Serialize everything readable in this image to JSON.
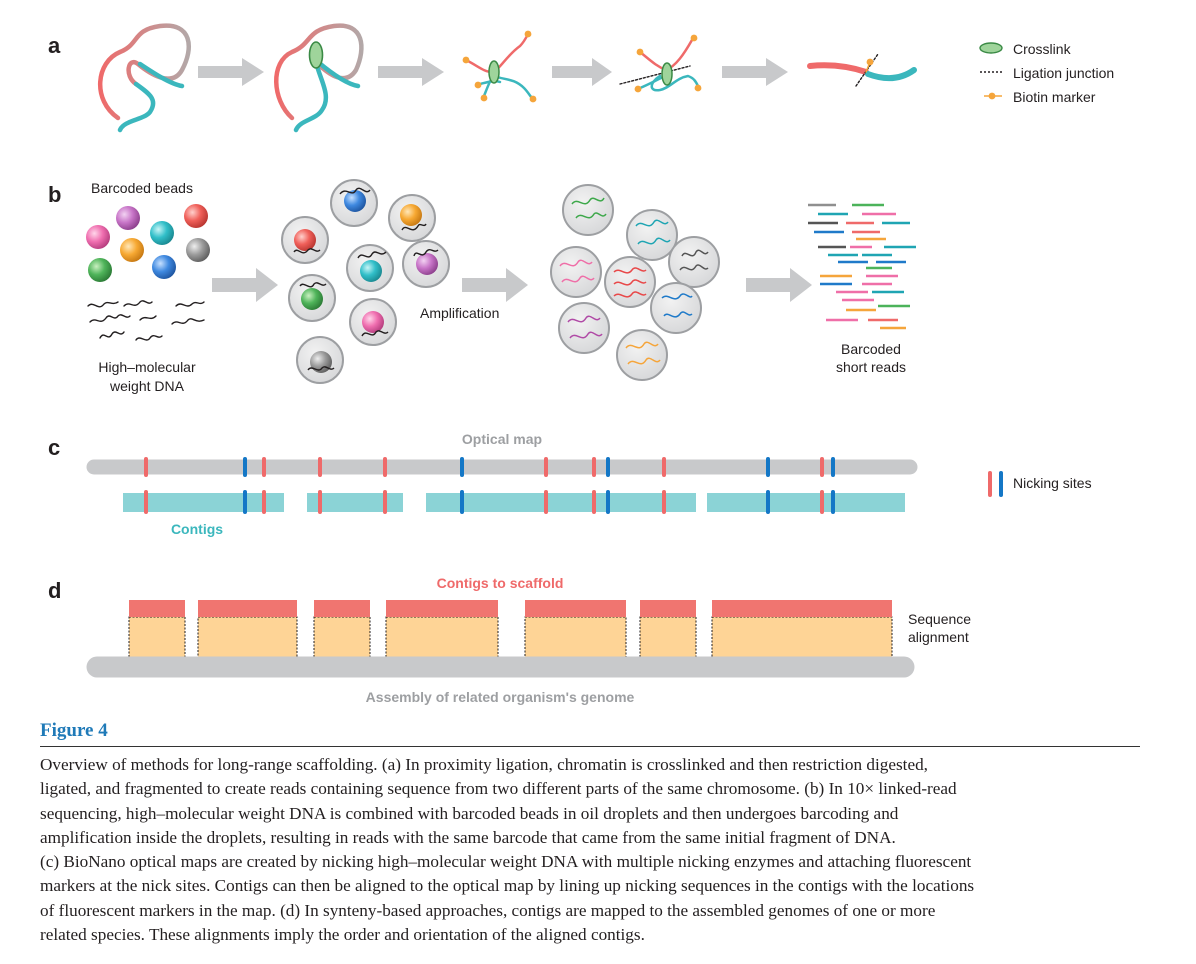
{
  "panels": {
    "a": {
      "letter": "a",
      "legend": {
        "crosslink": "Crosslink",
        "ligation": "Ligation junction",
        "biotin": "Biotin marker"
      }
    },
    "b": {
      "letter": "b",
      "barcoded_beads": "Barcoded beads",
      "hmw_line1": "High–molecular",
      "hmw_line2": "weight DNA",
      "amplification": "Amplification",
      "reads_line1": "Barcoded",
      "reads_line2": "short reads"
    },
    "c": {
      "letter": "c",
      "optical_map": "Optical map",
      "contigs": "Contigs",
      "nicking_sites": "Nicking sites"
    },
    "d": {
      "letter": "d",
      "contigs_to_scaffold": "Contigs to scaffold",
      "seq_line1": "Sequence",
      "seq_line2": "alignment",
      "assembly": "Assembly of related organism's genome"
    }
  },
  "colors": {
    "red": "#ef6a6a",
    "teal": "#3bb7bd",
    "blue": "#1477c6",
    "gray": "#c8c9cb",
    "contig_band": "#8bd3d6",
    "peach": "#fed496",
    "orange": "#f5a53b",
    "green": "#9fd49b",
    "caption_blue": "#1f7ab8"
  },
  "caption": {
    "title": "Figure 4",
    "line1": "Overview of methods for long-range scaffolding. (a) In proximity ligation, chromatin is crosslinked and then restriction digested,",
    "line2": "ligated, and fragmented to create reads containing sequence from two different parts of the same chromosome. (b) In 10× linked-read",
    "line3": "sequencing, high–molecular weight DNA is combined with barcoded beads in oil droplets and then undergoes barcoding and",
    "line4": "amplification inside the droplets, resulting in reads with the same barcode that came from the same initial fragment of DNA.",
    "line5": "(c) BioNano optical maps are created by nicking high–molecular weight DNA with multiple nicking enzymes and attaching fluorescent",
    "line6": "markers at the nick sites. Contigs can then be aligned to the optical map by lining up nicking sequences in the contigs with the locations",
    "line7": "of fluorescent markers in the map. (d) In synteny-based approaches, contigs are mapped to the assembled genomes of one or more",
    "line8": "related species. These alignments imply the order and orientation of the aligned contigs."
  }
}
